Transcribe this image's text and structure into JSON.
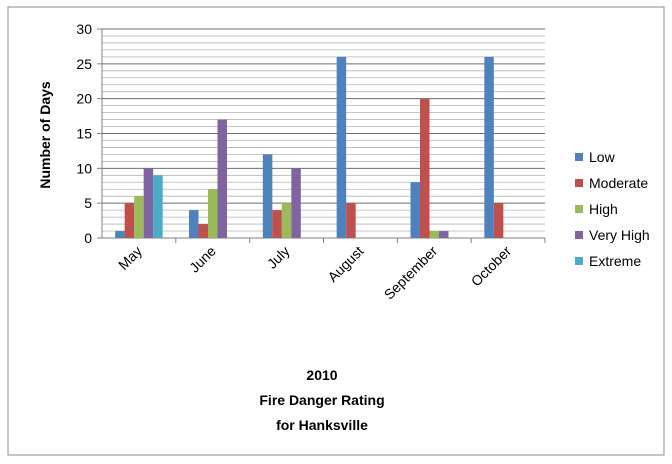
{
  "chart_data": {
    "type": "bar",
    "categories": [
      "May",
      "June",
      "July",
      "August",
      "September",
      "October"
    ],
    "series": [
      {
        "name": "Low",
        "color": "#4F81BD",
        "values": [
          1,
          4,
          12,
          26,
          8,
          26
        ]
      },
      {
        "name": "Moderate",
        "color": "#C0504D",
        "values": [
          5,
          2,
          4,
          5,
          20,
          5
        ]
      },
      {
        "name": "High",
        "color": "#9BBB59",
        "values": [
          6,
          7,
          5,
          0,
          1,
          0
        ]
      },
      {
        "name": "Very High",
        "color": "#8064A2",
        "values": [
          10,
          17,
          10,
          0,
          1,
          0
        ]
      },
      {
        "name": "Extreme",
        "color": "#4BACC6",
        "values": [
          9,
          0,
          0,
          0,
          0,
          0
        ]
      }
    ],
    "title_lines": [
      "2010",
      "Fire Danger Rating",
      "for Hanksville"
    ],
    "xlabel": "",
    "ylabel": "Number of Days",
    "ylim": [
      0,
      30
    ],
    "yticks": [
      "0",
      "5",
      "10",
      "15",
      "20",
      "25",
      "30"
    ],
    "grid": true,
    "legend_position": "right"
  }
}
